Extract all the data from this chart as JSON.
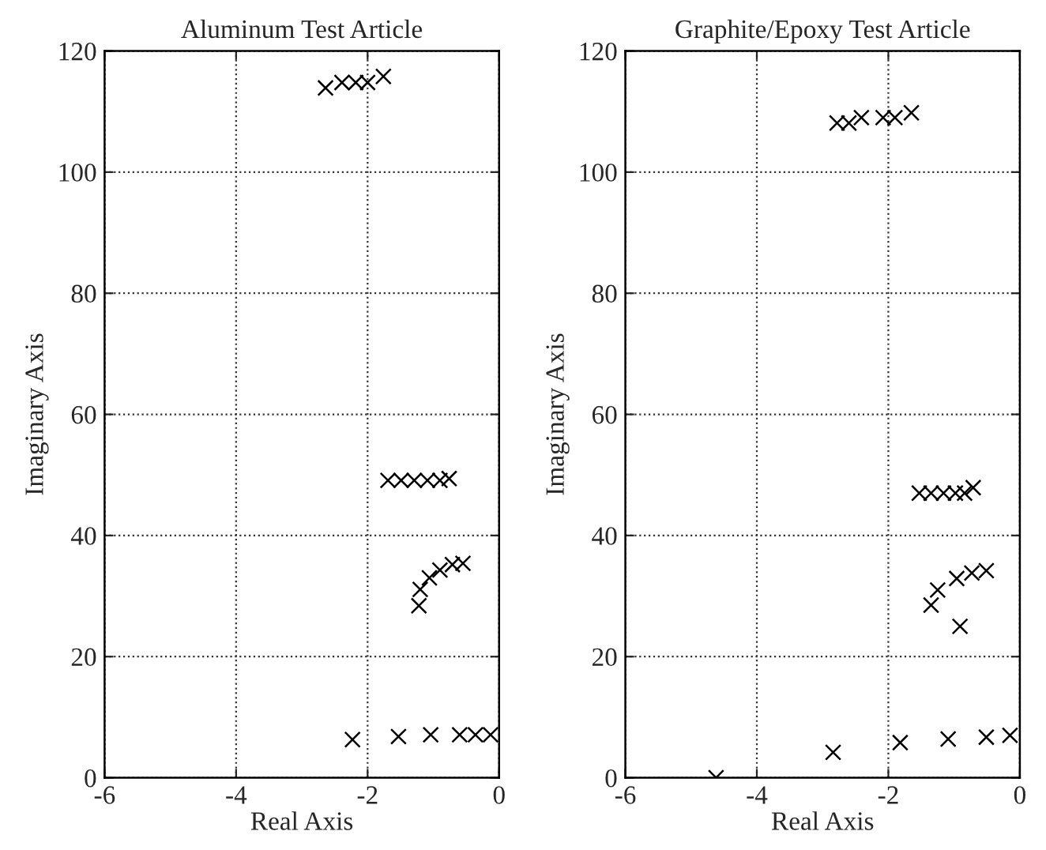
{
  "chart_data": [
    {
      "type": "scatter",
      "title": "Aluminum Test Article",
      "xlabel": "Real Axis",
      "ylabel": "Imaginary Axis",
      "marker": "cross",
      "grid": true,
      "xlim": [
        -6,
        0
      ],
      "xticks": [
        -6,
        -4,
        -2,
        0
      ],
      "ylim": [
        0,
        120
      ],
      "yticks": [
        0,
        20,
        40,
        60,
        80,
        100,
        120
      ],
      "series": [
        {
          "color": "#000000",
          "x": [
            -2.64,
            -2.39,
            -2.18,
            -2.0,
            -1.76,
            -1.69,
            -1.49,
            -1.29,
            -1.09,
            -0.9,
            -0.76,
            -1.22,
            -1.2,
            -1.06,
            -0.9,
            -0.71,
            -0.55,
            -2.23,
            -1.53,
            -1.04,
            -0.6,
            -0.36,
            -0.13
          ],
          "values": [
            113.9,
            114.8,
            114.8,
            114.8,
            115.8,
            49.1,
            49.1,
            49.1,
            49.1,
            49.1,
            49.4,
            28.4,
            31.1,
            33.0,
            34.3,
            35.2,
            35.4,
            6.3,
            6.8,
            7.1,
            7.1,
            7.1,
            7.1
          ]
        }
      ]
    },
    {
      "type": "scatter",
      "title": "Graphite/Epoxy Test Article",
      "xlabel": "Real Axis",
      "ylabel": "Imaginary Axis",
      "marker": "cross",
      "grid": true,
      "xlim": [
        -6,
        0
      ],
      "xticks": [
        -6,
        -4,
        -2,
        0
      ],
      "ylim": [
        0,
        120
      ],
      "yticks": [
        0,
        20,
        40,
        60,
        80,
        100,
        120
      ],
      "series": [
        {
          "color": "#000000",
          "x": [
            -2.78,
            -2.6,
            -2.41,
            -2.08,
            -1.9,
            -1.65,
            -1.53,
            -1.35,
            -1.16,
            -0.98,
            -0.84,
            -0.71,
            -1.35,
            -1.25,
            -0.96,
            -0.73,
            -0.51,
            -0.91,
            -4.62,
            -2.84,
            -1.82,
            -1.09,
            -0.51,
            -0.15
          ],
          "values": [
            108.1,
            108.1,
            109.0,
            109.0,
            109.0,
            109.8,
            47.0,
            47.0,
            47.0,
            47.0,
            47.0,
            47.9,
            28.5,
            31.0,
            32.9,
            33.8,
            34.2,
            25.0,
            0.0,
            4.2,
            5.8,
            6.4,
            6.7,
            7.0
          ]
        }
      ]
    }
  ]
}
